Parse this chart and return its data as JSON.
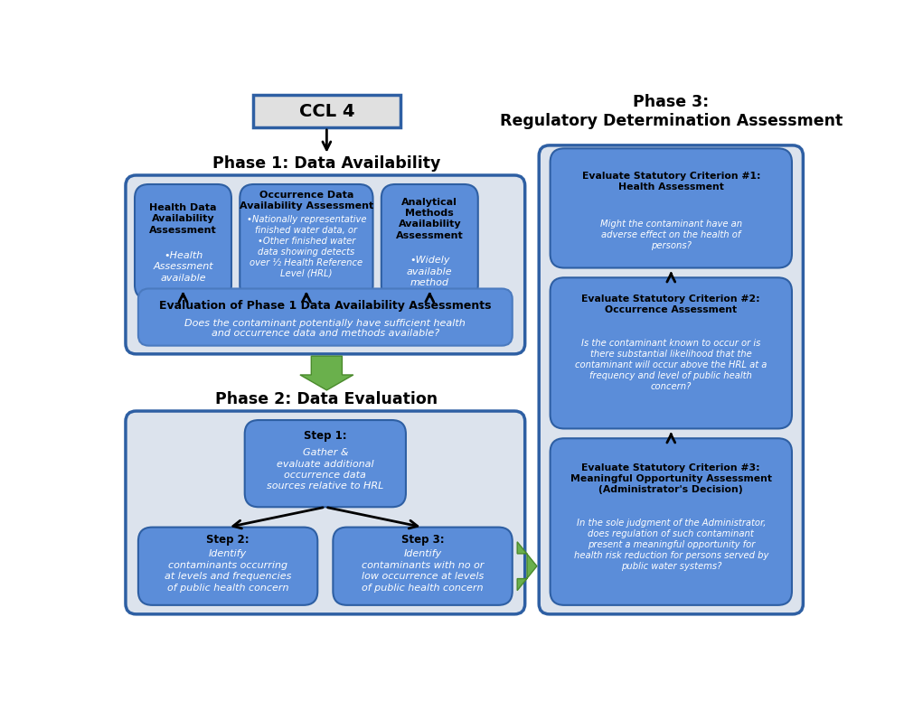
{
  "bg_color": "#ffffff",
  "light_gray": "#dce3ed",
  "blue_box": "#5b8dd9",
  "blue_border": "#2e5fa3",
  "ccl_bg": "#e0e0e0",
  "phase1_title": "Phase 1: Data Availability",
  "phase2_title": "Phase 2: Data Evaluation",
  "phase3_title": "Phase 3:\nRegulatory Determination Assessment",
  "ccl_text": "CCL 4",
  "box1_title": "Health Data\nAvailability\nAssessment",
  "box1_body": "•Health\nAssessment\navailable",
  "box2_title": "Occurrence Data\nAvailability Assessment",
  "box2_body": "•Nationally representative\nfinished water data, or\n•Other finished water\ndata showing detects\nover ½ Health Reference\nLevel (HRL)",
  "box3_title": "Analytical\nMethods\nAvailability\nAssessment",
  "box3_body": "•Widely\navailable\nmethod",
  "box4_title": "Evaluation of Phase 1 Data Availability Assessments",
  "box4_body": "Does the contaminant potentially have sufficient health\nand occurrence data and methods available?",
  "step1_title": "Step 1:",
  "step1_body": "Gather &\nevaluate additional\noccurrence data\nsources relative to HRL",
  "step2_title": "Step 2:",
  "step2_body": "Identify\ncontaminants occurring\nat levels and frequencies\nof public health concern",
  "step3_title": "Step 3:",
  "step3_body": "Identify\ncontaminants with no or\nlow occurrence at levels\nof public health concern",
  "criterion1_title": "Evaluate Statutory Criterion #1:\nHealth Assessment",
  "criterion1_body": "Might the contaminant have an\nadverse effect on the health of\npersons?",
  "criterion2_title": "Evaluate Statutory Criterion #2:\nOccurrence Assessment",
  "criterion2_body": "Is the contaminant known to occur or is\nthere substantial likelihood that the\ncontaminant will occur above the HRL at a\nfrequency and level of public health\nconcern?",
  "criterion3_title": "Evaluate Statutory Criterion #3:\nMeaningful Opportunity Assessment\n(Administrator's Decision)",
  "criterion3_body": "In the sole judgment of the Administrator,\ndoes regulation of such contaminant\npresent a meaningful opportunity for\nhealth risk reduction for persons served by\npublic water systems?"
}
